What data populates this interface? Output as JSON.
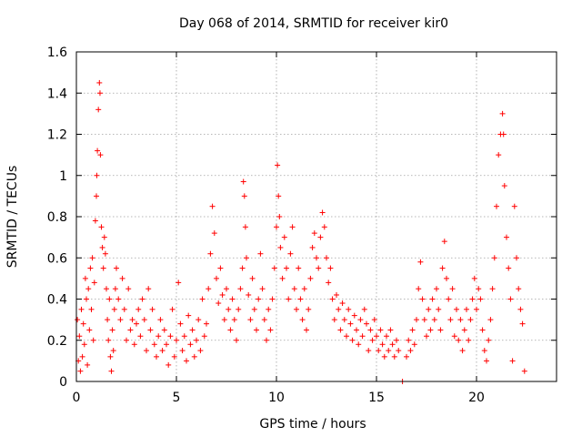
{
  "chart_data": {
    "type": "scatter",
    "title": "Day 068 of 2014, SRMTID for receiver kir0",
    "xlabel": "GPS time / hours",
    "ylabel": "SRMTID / TECUs",
    "xlim": [
      0,
      24
    ],
    "ylim": [
      0,
      1.6
    ],
    "grid": true,
    "marker": "+",
    "color": "#ff0000",
    "x_ticks": [
      0,
      5,
      10,
      15,
      20
    ],
    "x_tick_labels": [
      "0",
      "5",
      "10",
      "15",
      "20"
    ],
    "y_ticks": [
      0,
      0.2,
      0.4,
      0.6,
      0.8,
      1.0,
      1.2,
      1.4,
      1.6
    ],
    "y_tick_labels": [
      "0",
      "0.2",
      "0.4",
      "0.6",
      "0.8",
      "1",
      "1.2",
      "1.4",
      "1.6"
    ],
    "series": [
      {
        "name": "kir0",
        "points": [
          [
            0.05,
            0.3
          ],
          [
            0.1,
            0.1
          ],
          [
            0.15,
            0.22
          ],
          [
            0.2,
            0.05
          ],
          [
            0.25,
            0.35
          ],
          [
            0.3,
            0.12
          ],
          [
            0.35,
            0.28
          ],
          [
            0.4,
            0.18
          ],
          [
            0.45,
            0.5
          ],
          [
            0.5,
            0.4
          ],
          [
            0.55,
            0.08
          ],
          [
            0.6,
            0.45
          ],
          [
            0.65,
            0.25
          ],
          [
            0.7,
            0.55
          ],
          [
            0.75,
            0.35
          ],
          [
            0.8,
            0.6
          ],
          [
            0.85,
            0.2
          ],
          [
            0.9,
            0.48
          ],
          [
            0.95,
            0.78
          ],
          [
            1.0,
            0.9
          ],
          [
            1.02,
            1.0
          ],
          [
            1.05,
            1.12
          ],
          [
            1.1,
            1.32
          ],
          [
            1.15,
            1.45
          ],
          [
            1.18,
            1.4
          ],
          [
            1.2,
            1.1
          ],
          [
            1.25,
            0.75
          ],
          [
            1.3,
            0.65
          ],
          [
            1.35,
            0.55
          ],
          [
            1.4,
            0.7
          ],
          [
            1.45,
            0.62
          ],
          [
            1.5,
            0.45
          ],
          [
            1.55,
            0.3
          ],
          [
            1.6,
            0.2
          ],
          [
            1.65,
            0.4
          ],
          [
            1.7,
            0.12
          ],
          [
            1.75,
            0.05
          ],
          [
            1.8,
            0.25
          ],
          [
            1.85,
            0.15
          ],
          [
            1.9,
            0.35
          ],
          [
            1.95,
            0.45
          ],
          [
            2.0,
            0.55
          ],
          [
            2.1,
            0.4
          ],
          [
            2.2,
            0.3
          ],
          [
            2.3,
            0.5
          ],
          [
            2.4,
            0.35
          ],
          [
            2.5,
            0.2
          ],
          [
            2.6,
            0.45
          ],
          [
            2.7,
            0.25
          ],
          [
            2.8,
            0.3
          ],
          [
            2.9,
            0.18
          ],
          [
            3.0,
            0.28
          ],
          [
            3.1,
            0.35
          ],
          [
            3.2,
            0.22
          ],
          [
            3.3,
            0.4
          ],
          [
            3.4,
            0.3
          ],
          [
            3.5,
            0.15
          ],
          [
            3.6,
            0.45
          ],
          [
            3.7,
            0.25
          ],
          [
            3.8,
            0.35
          ],
          [
            3.9,
            0.18
          ],
          [
            4.0,
            0.12
          ],
          [
            4.1,
            0.22
          ],
          [
            4.2,
            0.3
          ],
          [
            4.3,
            0.15
          ],
          [
            4.4,
            0.25
          ],
          [
            4.5,
            0.18
          ],
          [
            4.6,
            0.08
          ],
          [
            4.7,
            0.22
          ],
          [
            4.8,
            0.35
          ],
          [
            4.9,
            0.12
          ],
          [
            5.0,
            0.2
          ],
          [
            5.1,
            0.48
          ],
          [
            5.2,
            0.28
          ],
          [
            5.3,
            0.15
          ],
          [
            5.4,
            0.22
          ],
          [
            5.5,
            0.1
          ],
          [
            5.6,
            0.32
          ],
          [
            5.7,
            0.18
          ],
          [
            5.8,
            0.25
          ],
          [
            5.9,
            0.12
          ],
          [
            6.0,
            0.2
          ],
          [
            6.1,
            0.3
          ],
          [
            6.2,
            0.15
          ],
          [
            6.3,
            0.4
          ],
          [
            6.4,
            0.22
          ],
          [
            6.5,
            0.28
          ],
          [
            6.6,
            0.45
          ],
          [
            6.7,
            0.62
          ],
          [
            6.8,
            0.85
          ],
          [
            6.9,
            0.72
          ],
          [
            7.0,
            0.5
          ],
          [
            7.1,
            0.38
          ],
          [
            7.2,
            0.55
          ],
          [
            7.3,
            0.42
          ],
          [
            7.4,
            0.3
          ],
          [
            7.5,
            0.45
          ],
          [
            7.6,
            0.35
          ],
          [
            7.7,
            0.25
          ],
          [
            7.8,
            0.4
          ],
          [
            7.9,
            0.3
          ],
          [
            8.0,
            0.2
          ],
          [
            8.1,
            0.35
          ],
          [
            8.2,
            0.45
          ],
          [
            8.3,
            0.55
          ],
          [
            8.35,
            0.97
          ],
          [
            8.4,
            0.9
          ],
          [
            8.45,
            0.75
          ],
          [
            8.5,
            0.6
          ],
          [
            8.6,
            0.42
          ],
          [
            8.7,
            0.3
          ],
          [
            8.8,
            0.5
          ],
          [
            8.9,
            0.35
          ],
          [
            9.0,
            0.25
          ],
          [
            9.1,
            0.4
          ],
          [
            9.2,
            0.62
          ],
          [
            9.3,
            0.45
          ],
          [
            9.4,
            0.3
          ],
          [
            9.5,
            0.2
          ],
          [
            9.6,
            0.35
          ],
          [
            9.7,
            0.25
          ],
          [
            9.8,
            0.4
          ],
          [
            9.9,
            0.55
          ],
          [
            10.0,
            0.75
          ],
          [
            10.05,
            1.05
          ],
          [
            10.1,
            0.9
          ],
          [
            10.15,
            0.8
          ],
          [
            10.2,
            0.65
          ],
          [
            10.3,
            0.5
          ],
          [
            10.4,
            0.7
          ],
          [
            10.5,
            0.55
          ],
          [
            10.6,
            0.4
          ],
          [
            10.7,
            0.62
          ],
          [
            10.8,
            0.75
          ],
          [
            10.9,
            0.45
          ],
          [
            11.0,
            0.35
          ],
          [
            11.1,
            0.55
          ],
          [
            11.2,
            0.4
          ],
          [
            11.3,
            0.3
          ],
          [
            11.4,
            0.45
          ],
          [
            11.5,
            0.25
          ],
          [
            11.6,
            0.35
          ],
          [
            11.7,
            0.5
          ],
          [
            11.8,
            0.65
          ],
          [
            11.9,
            0.72
          ],
          [
            12.0,
            0.6
          ],
          [
            12.1,
            0.55
          ],
          [
            12.2,
            0.7
          ],
          [
            12.3,
            0.82
          ],
          [
            12.4,
            0.75
          ],
          [
            12.5,
            0.6
          ],
          [
            12.6,
            0.48
          ],
          [
            12.7,
            0.55
          ],
          [
            12.8,
            0.4
          ],
          [
            12.9,
            0.3
          ],
          [
            13.0,
            0.42
          ],
          [
            13.1,
            0.35
          ],
          [
            13.2,
            0.25
          ],
          [
            13.3,
            0.38
          ],
          [
            13.4,
            0.3
          ],
          [
            13.5,
            0.22
          ],
          [
            13.6,
            0.35
          ],
          [
            13.7,
            0.28
          ],
          [
            13.8,
            0.2
          ],
          [
            13.9,
            0.32
          ],
          [
            14.0,
            0.25
          ],
          [
            14.1,
            0.18
          ],
          [
            14.2,
            0.3
          ],
          [
            14.3,
            0.22
          ],
          [
            14.4,
            0.35
          ],
          [
            14.5,
            0.28
          ],
          [
            14.6,
            0.15
          ],
          [
            14.7,
            0.25
          ],
          [
            14.8,
            0.2
          ],
          [
            14.9,
            0.3
          ],
          [
            15.0,
            0.22
          ],
          [
            15.1,
            0.15
          ],
          [
            15.2,
            0.25
          ],
          [
            15.3,
            0.18
          ],
          [
            15.4,
            0.12
          ],
          [
            15.5,
            0.22
          ],
          [
            15.6,
            0.15
          ],
          [
            15.7,
            0.25
          ],
          [
            15.8,
            0.18
          ],
          [
            15.9,
            0.12
          ],
          [
            16.0,
            0.2
          ],
          [
            16.1,
            0.15
          ],
          [
            16.3,
            0.0
          ],
          [
            16.5,
            0.12
          ],
          [
            16.6,
            0.2
          ],
          [
            16.7,
            0.15
          ],
          [
            16.8,
            0.25
          ],
          [
            16.9,
            0.18
          ],
          [
            17.0,
            0.3
          ],
          [
            17.1,
            0.45
          ],
          [
            17.2,
            0.58
          ],
          [
            17.3,
            0.4
          ],
          [
            17.4,
            0.3
          ],
          [
            17.5,
            0.22
          ],
          [
            17.6,
            0.35
          ],
          [
            17.7,
            0.25
          ],
          [
            17.8,
            0.4
          ],
          [
            17.9,
            0.3
          ],
          [
            18.0,
            0.45
          ],
          [
            18.1,
            0.35
          ],
          [
            18.2,
            0.25
          ],
          [
            18.3,
            0.55
          ],
          [
            18.4,
            0.68
          ],
          [
            18.5,
            0.5
          ],
          [
            18.6,
            0.4
          ],
          [
            18.7,
            0.3
          ],
          [
            18.8,
            0.45
          ],
          [
            18.9,
            0.22
          ],
          [
            19.0,
            0.35
          ],
          [
            19.1,
            0.2
          ],
          [
            19.2,
            0.3
          ],
          [
            19.3,
            0.15
          ],
          [
            19.4,
            0.25
          ],
          [
            19.5,
            0.35
          ],
          [
            19.6,
            0.2
          ],
          [
            19.7,
            0.3
          ],
          [
            19.8,
            0.4
          ],
          [
            19.9,
            0.5
          ],
          [
            20.0,
            0.35
          ],
          [
            20.1,
            0.45
          ],
          [
            20.2,
            0.4
          ],
          [
            20.3,
            0.25
          ],
          [
            20.4,
            0.15
          ],
          [
            20.5,
            0.1
          ],
          [
            20.6,
            0.2
          ],
          [
            20.7,
            0.3
          ],
          [
            20.8,
            0.45
          ],
          [
            20.9,
            0.6
          ],
          [
            21.0,
            0.85
          ],
          [
            21.1,
            1.1
          ],
          [
            21.2,
            1.2
          ],
          [
            21.3,
            1.3
          ],
          [
            21.35,
            1.2
          ],
          [
            21.4,
            0.95
          ],
          [
            21.5,
            0.7
          ],
          [
            21.6,
            0.55
          ],
          [
            21.7,
            0.4
          ],
          [
            21.8,
            0.1
          ],
          [
            21.9,
            0.85
          ],
          [
            22.0,
            0.6
          ],
          [
            22.1,
            0.45
          ],
          [
            22.2,
            0.35
          ],
          [
            22.3,
            0.28
          ],
          [
            22.4,
            0.05
          ]
        ]
      }
    ]
  }
}
